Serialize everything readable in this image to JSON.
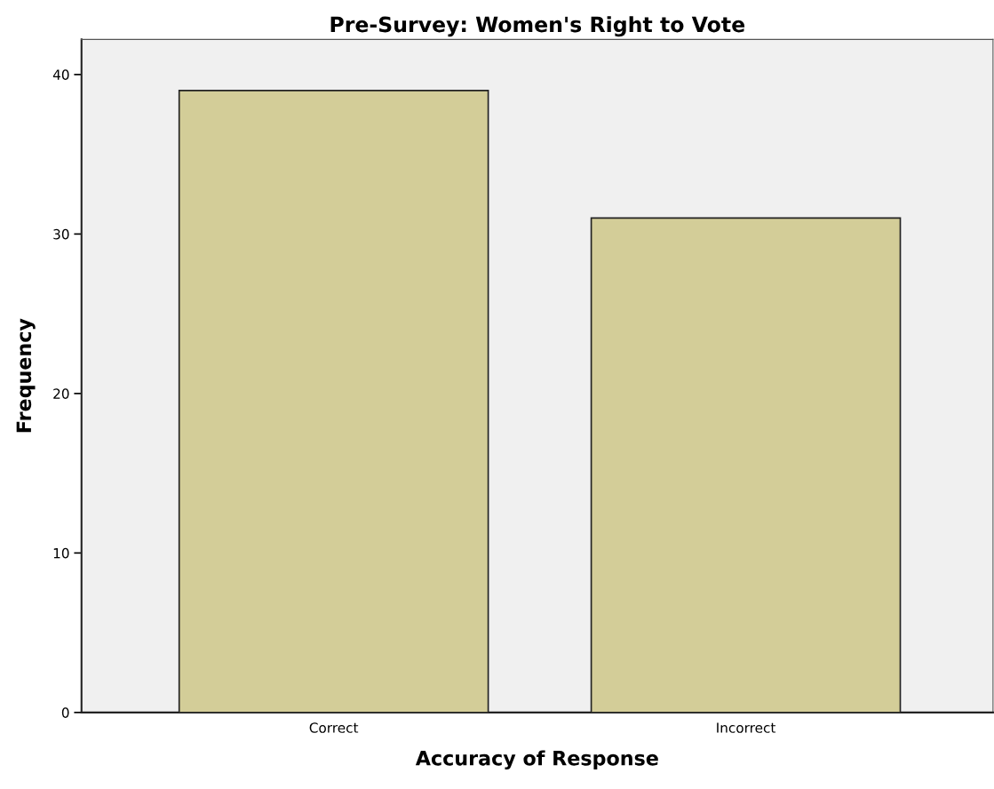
{
  "chart_data": {
    "type": "bar",
    "title": "Pre-Survey: Women's Right to Vote",
    "xlabel": "Accuracy of Response",
    "ylabel": "Frequency",
    "categories": [
      "Correct",
      "Incorrect"
    ],
    "values": [
      39,
      31
    ],
    "color": "#d3cd98",
    "ylim": [
      0,
      42.2
    ],
    "yticks": [
      0,
      10,
      20,
      30,
      40
    ],
    "grid": false,
    "legend": false
  }
}
